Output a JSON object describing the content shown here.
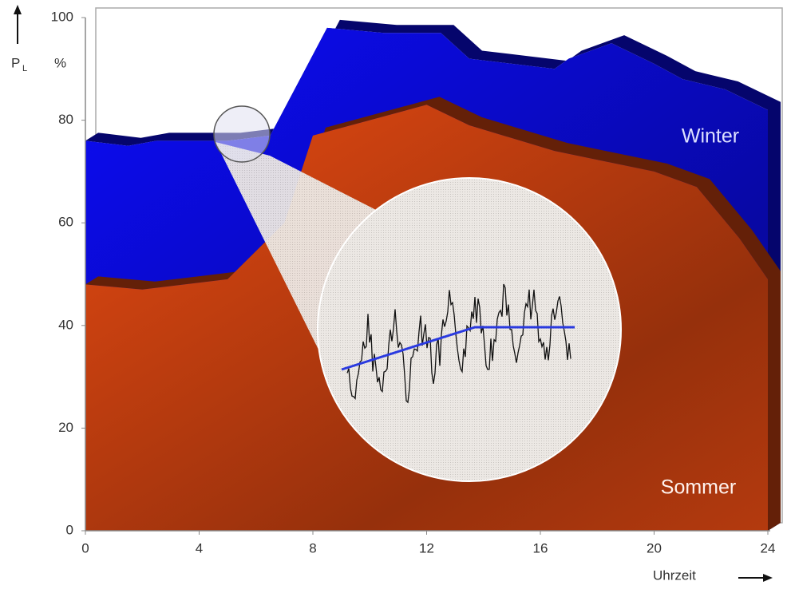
{
  "chart_data": {
    "type": "area",
    "y_label": "P",
    "y_label_sub": "L",
    "y_unit": "%",
    "x_label": "Uhrzeit",
    "xlim": [
      0,
      24
    ],
    "xticks": [
      0,
      4,
      8,
      12,
      16,
      20,
      24
    ],
    "ylim": [
      0,
      100
    ],
    "yticks": [
      0,
      20,
      40,
      60,
      80,
      100
    ],
    "series": [
      {
        "name": "Winter",
        "color": "#0a0ad8",
        "x": [
          0,
          1.5,
          2.5,
          5,
          6.5,
          8.5,
          10.5,
          12.5,
          13.5,
          16.5,
          17,
          18.5,
          20,
          21,
          22.5,
          24
        ],
        "values": [
          76,
          75,
          76,
          76,
          77,
          98,
          97,
          97,
          92,
          90,
          92,
          95,
          91,
          88,
          86,
          82
        ]
      },
      {
        "name": "Sommer",
        "color": "#c84010",
        "x": [
          0,
          2,
          5,
          7,
          8,
          12,
          13.5,
          16.5,
          20,
          21.5,
          23,
          24
        ],
        "values": [
          48,
          47,
          49,
          60,
          77,
          83,
          79,
          74,
          70,
          67,
          57,
          49
        ]
      }
    ]
  }
}
